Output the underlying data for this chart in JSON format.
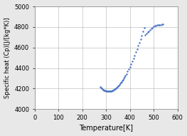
{
  "title": "",
  "xlabel": "Temperature[K]",
  "ylabel": "Specific heat (Cp)[J/[kg*K)]",
  "xlim": [
    0,
    600
  ],
  "ylim": [
    4000,
    5000
  ],
  "xticks": [
    0,
    100,
    200,
    300,
    400,
    500,
    600
  ],
  "yticks": [
    4000,
    4200,
    4400,
    4600,
    4800,
    5000
  ],
  "marker_color": "#4472C4",
  "marker_size": 3,
  "background_color": "#E8E8E8",
  "plot_bg_color": "#FFFFFF",
  "curve_points": {
    "temperature": [
      275,
      278,
      281,
      284,
      287,
      290,
      293,
      296,
      299,
      302,
      305,
      308,
      311,
      314,
      317,
      320,
      323,
      326,
      329,
      332,
      335,
      338,
      341,
      344,
      347,
      350,
      353,
      356,
      359,
      362,
      365,
      368,
      371,
      374,
      377,
      380,
      385,
      390,
      395,
      400,
      405,
      410,
      415,
      420,
      425,
      430,
      435,
      440,
      445,
      450,
      455,
      460,
      465,
      470,
      475,
      480,
      485,
      490,
      495,
      500,
      505,
      510,
      515,
      520,
      525,
      530,
      535,
      540
    ],
    "specific_heat": [
      4220,
      4210,
      4202,
      4196,
      4190,
      4185,
      4182,
      4179,
      4177,
      4175,
      4174,
      4173,
      4172,
      4172,
      4173,
      4175,
      4177,
      4180,
      4184,
      4188,
      4193,
      4198,
      4204,
      4210,
      4217,
      4224,
      4232,
      4240,
      4249,
      4258,
      4268,
      4278,
      4289,
      4300,
      4312,
      4325,
      4345,
      4367,
      4390,
      4414,
      4440,
      4467,
      4495,
      4524,
      4554,
      4585,
      4617,
      4650,
      4684,
      4719,
      4755,
      4792,
      4720,
      4735,
      4750,
      4760,
      4770,
      4785,
      4795,
      4805,
      4810,
      4815,
      4818,
      4820,
      4822,
      4823,
      4824,
      4825
    ]
  }
}
